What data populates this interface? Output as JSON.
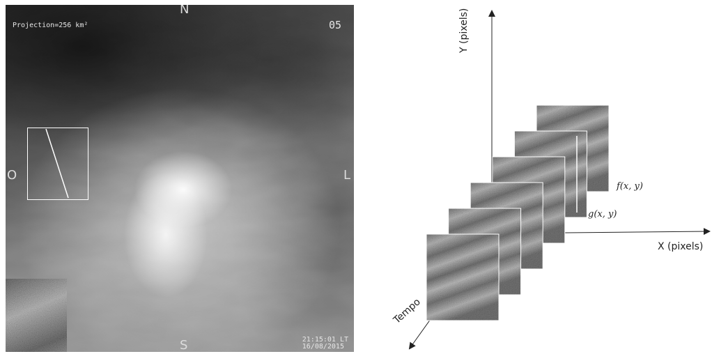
{
  "sky_image": {
    "projection_label": "Projection=256 km²",
    "frame_number": "05",
    "compass": {
      "north": "N",
      "south": "S",
      "west": "O",
      "east": "L"
    },
    "timestamp_time": "21:15:01 LT",
    "timestamp_date": "16/08/2015"
  },
  "diagram": {
    "x_axis_label": "X (pixels)",
    "y_axis_label": "Y (pixels)",
    "time_axis_label": "Tempo",
    "frame_f_label": "f(x, y)",
    "frame_g_label": "g(x, y)",
    "frame_count": 6
  }
}
